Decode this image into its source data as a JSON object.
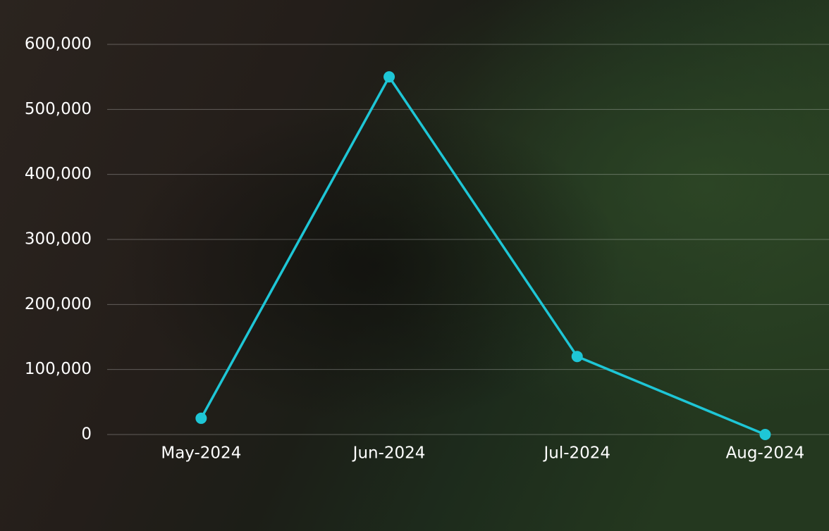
{
  "chart_data": {
    "type": "line",
    "categories": [
      "May-2024",
      "Jun-2024",
      "Jul-2024",
      "Aug-2024"
    ],
    "values": [
      25000,
      550000,
      120000,
      0
    ],
    "color": "#1ec6d6",
    "ylim": [
      0,
      600000
    ],
    "yticks": [
      0,
      {
        "value": 100000,
        "label": "100,000"
      },
      {
        "value": 200000,
        "label": "200,000"
      },
      {
        "value": 300000,
        "label": "300,000"
      },
      {
        "value": 400000,
        "label": "400,000"
      },
      {
        "value": 500000,
        "label": "500,000"
      },
      {
        "value": 600000,
        "label": "600,000"
      }
    ],
    "grid": true
  }
}
